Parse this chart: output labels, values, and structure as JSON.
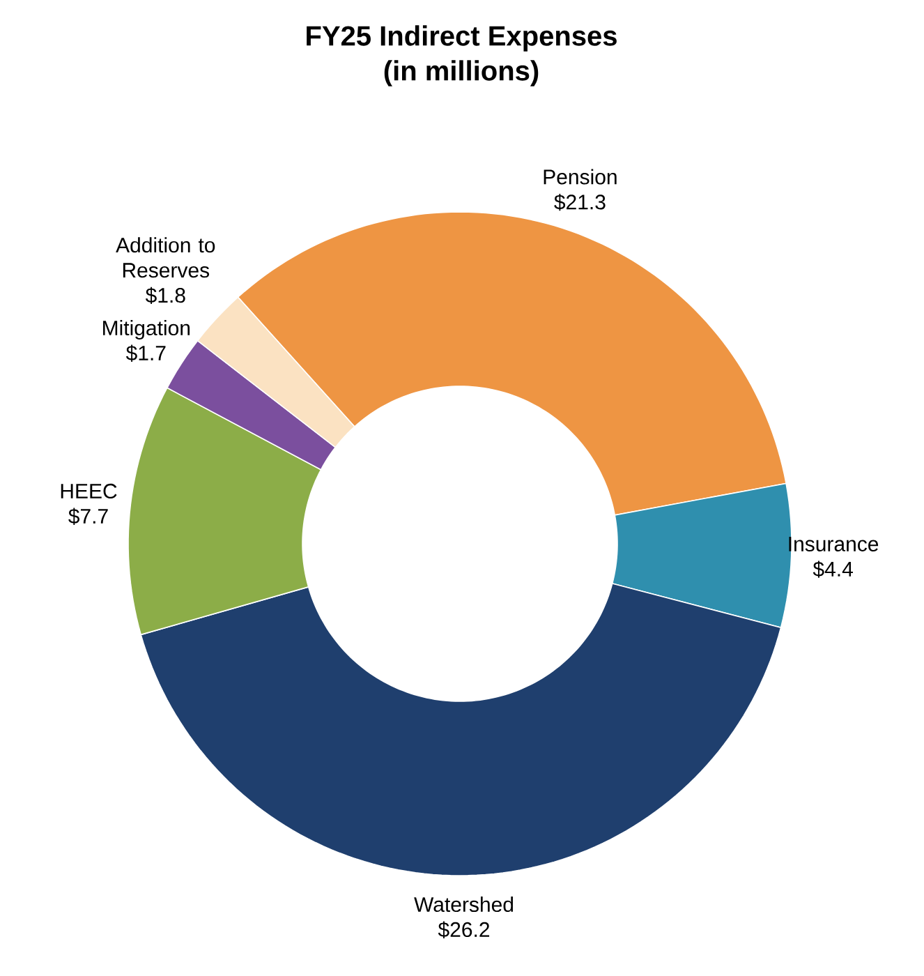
{
  "chart_data": {
    "type": "donut",
    "title": "FY25 Indirect Expenses",
    "subtitle": "(in millions)",
    "categories": [
      "Pension",
      "Insurance",
      "Watershed",
      "HEEC",
      "Mitigation",
      "Addition to Reserves"
    ],
    "values": [
      21.3,
      4.4,
      26.2,
      7.7,
      1.7,
      1.8
    ],
    "value_labels": [
      "$21.3",
      "$4.4",
      "$26.2",
      "$7.7",
      "$1.7",
      "$1.8"
    ],
    "colors": [
      "#ee9543",
      "#2f8fae",
      "#1f3f6e",
      "#8cad48",
      "#7b4f9e",
      "#fbe2c2"
    ]
  }
}
